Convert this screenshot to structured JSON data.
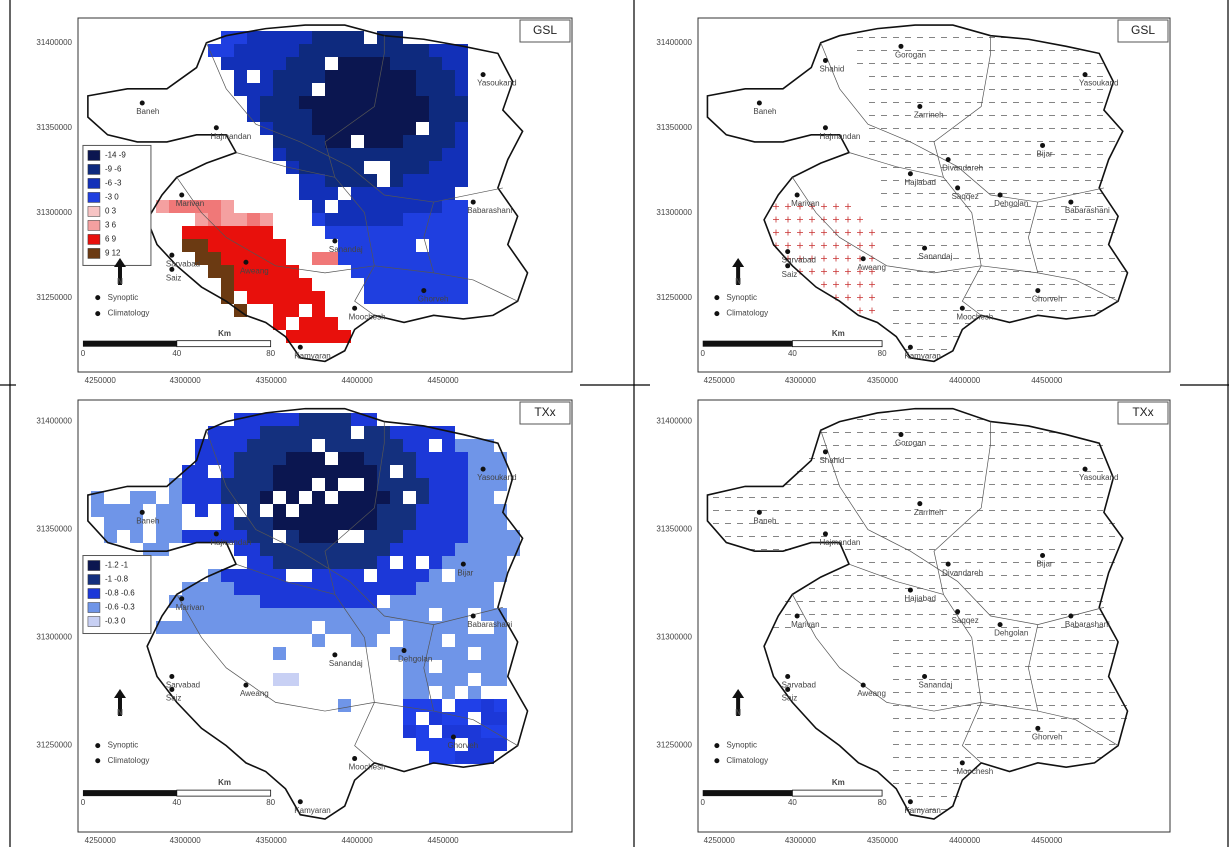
{
  "panels": [
    {
      "label": "GSL",
      "legend": [
        "-14 -9",
        "-9 -6",
        "-6 -3",
        "-3 0",
        "0 3",
        "3 6",
        "6 9",
        "9 12"
      ],
      "cities": [
        "Baneh",
        "Hajmandan",
        "Marivan",
        "Sarvabad",
        "Saiz",
        "Aweang",
        "Sanandaj",
        "Moochesh",
        "Kamyaran",
        "Ghorveh",
        "Babarashani",
        "Yasoukand"
      ],
      "north": "N",
      "stations": [
        "Synoptic",
        "Climatology"
      ],
      "scale": {
        "unit": "Km",
        "ticks": [
          0,
          40,
          80
        ]
      },
      "x_ticks": [
        4250000,
        4300000,
        4350000,
        4400000,
        4450000
      ],
      "y_ticks": [
        31400000,
        31350000,
        31300000,
        31250000
      ]
    },
    {
      "label": "GSL",
      "cities": [
        "Shahid",
        "Gorogan",
        "Baneh",
        "Zarrineh",
        "Hajmandan",
        "Bijar",
        "Divandareh",
        "Hajiabad",
        "Saqqez",
        "Yasoukand",
        "Marivan",
        "Dehgolan",
        "Babarashani",
        "Sarvabad",
        "Saiz",
        "Aweang",
        "Sanandaj",
        "Ghorveh",
        "Moochesh",
        "Kamyaran"
      ],
      "north": "N",
      "stations": [
        "Synoptic",
        "Climatology"
      ],
      "scale": {
        "unit": "Km",
        "ticks": [
          0,
          40,
          80
        ]
      },
      "x_ticks": [
        4250000,
        4300000,
        4350000,
        4400000,
        4450000
      ],
      "y_ticks": [
        31400000,
        31350000,
        31300000,
        31250000
      ]
    },
    {
      "label": "TXx",
      "legend": [
        "-1.2 -1",
        "-1 -0.8",
        "-0.8 -0.6",
        "-0.6 -0.3",
        "-0.3 0"
      ],
      "cities": [
        "Baneh",
        "Hajmandan",
        "Marivan",
        "Sarvabad",
        "Saiz",
        "Aweang",
        "Sanandaj",
        "Moochesh",
        "Kamyaran",
        "Ghorveh",
        "Babarashani",
        "Yasoukand",
        "Bijar",
        "Dehgolan"
      ],
      "north": "N",
      "stations": [
        "Synoptic",
        "Climatology"
      ],
      "scale": {
        "unit": "Km",
        "ticks": [
          0,
          40,
          80
        ]
      },
      "x_ticks": [
        4250000,
        4300000,
        4350000,
        4400000,
        4450000
      ],
      "y_ticks": [
        31400000,
        31350000,
        31300000,
        31250000
      ]
    },
    {
      "label": "TXx",
      "cities": [
        "Shahid",
        "Gorogan",
        "Baneh",
        "Zarrineh",
        "Hajmandan",
        "Bijar",
        "Divandareh",
        "Hajiabad",
        "Saqqez",
        "Yasoukand",
        "Marivan",
        "Dehgolan",
        "Babarashani",
        "Sarvabad",
        "Saiz",
        "Aweang",
        "Sanandaj",
        "Ghorveh",
        "Moochesh",
        "Kamyaran"
      ],
      "north": "N",
      "stations": [
        "Synoptic",
        "Climatology"
      ],
      "scale": {
        "unit": "Km",
        "ticks": [
          0,
          40,
          80
        ]
      },
      "x_ticks": [
        4250000,
        4300000,
        4350000,
        4400000,
        4450000
      ],
      "y_ticks": [
        31400000,
        31350000,
        31300000,
        31250000
      ]
    }
  ]
}
